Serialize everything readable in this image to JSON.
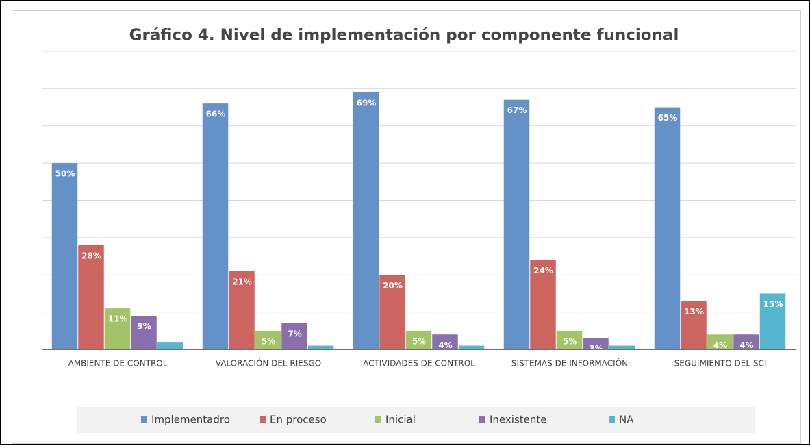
{
  "chart_data": {
    "type": "bar",
    "title": "Gráfico 4. Nivel de implementación por componente funcional",
    "categories": [
      "AMBIENTE DE CONTROL",
      "VALORACIÓN DEL RIESGO",
      "ACTIVIDADES DE CONTROL",
      "SISTEMAS DE INFORMACIÓN",
      "SEGUIMIENTO DEL SCI"
    ],
    "series": [
      {
        "name": "Implementadro",
        "color": "#6591c9",
        "values": [
          50,
          66,
          69,
          67,
          65
        ],
        "value_labels": [
          "50%",
          "66%",
          "69%",
          "67%",
          "65%"
        ]
      },
      {
        "name": "En proceso",
        "color": "#cc6460",
        "values": [
          28,
          21,
          20,
          24,
          13
        ],
        "value_labels": [
          "28%",
          "21%",
          "20%",
          "24%",
          "13%"
        ]
      },
      {
        "name": "Inicial",
        "color": "#a2c466",
        "values": [
          11,
          5,
          5,
          5,
          4
        ],
        "value_labels": [
          "11%",
          "5%",
          "5%",
          "5%",
          "4%"
        ]
      },
      {
        "name": "Inexistente",
        "color": "#8a6fae",
        "values": [
          9,
          7,
          4,
          3,
          4
        ],
        "value_labels": [
          "9%",
          "7%",
          "4%",
          "3%",
          "4%"
        ]
      },
      {
        "name": "NA",
        "color": "#56b5cf",
        "values": [
          2,
          1,
          1,
          1,
          15
        ],
        "value_labels": [
          null,
          null,
          null,
          null,
          "15%"
        ]
      }
    ],
    "ylim": [
      0,
      80
    ],
    "yticks": [
      0,
      10,
      20,
      30,
      40,
      50,
      60,
      70,
      80
    ],
    "grid": true,
    "legend": "bottom"
  }
}
